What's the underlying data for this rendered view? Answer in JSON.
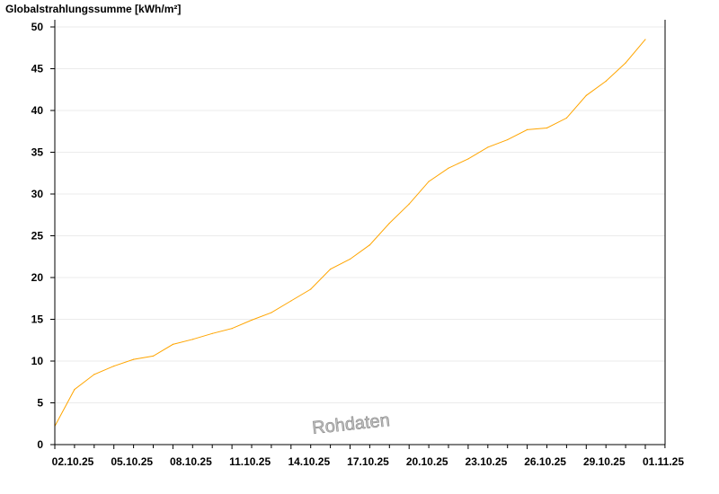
{
  "chart_data": {
    "type": "line",
    "title": "",
    "ylabel": "Globalstrahlungssumme [kWh/m²]",
    "xlabel": "",
    "watermark": "Rohdaten",
    "ylim": [
      0,
      50
    ],
    "yticks": [
      0,
      5,
      10,
      15,
      20,
      25,
      30,
      35,
      40,
      45,
      50
    ],
    "xlim": [
      "02.10.25",
      "03.11.25"
    ],
    "xtick_labels": [
      "02.10.25",
      "05.10.25",
      "08.10.25",
      "11.10.25",
      "14.10.25",
      "17.10.25",
      "20.10.25",
      "23.10.25",
      "26.10.25",
      "29.10.25",
      "01.11.25"
    ],
    "grid": true,
    "line_color": "#ffa500",
    "x": [
      "02.10.25",
      "03.10.25",
      "04.10.25",
      "05.10.25",
      "06.10.25",
      "07.10.25",
      "08.10.25",
      "09.10.25",
      "10.10.25",
      "11.10.25",
      "12.10.25",
      "13.10.25",
      "14.10.25",
      "15.10.25",
      "16.10.25",
      "17.10.25",
      "18.10.25",
      "19.10.25",
      "20.10.25",
      "21.10.25",
      "22.10.25",
      "23.10.25",
      "24.10.25",
      "25.10.25",
      "26.10.25",
      "27.10.25",
      "28.10.25",
      "29.10.25",
      "30.10.25",
      "31.10.25",
      "01.11.25"
    ],
    "values": [
      2.2,
      6.6,
      8.4,
      9.4,
      10.2,
      10.6,
      12.0,
      12.6,
      13.3,
      13.9,
      14.9,
      15.8,
      17.2,
      18.6,
      21.0,
      22.2,
      23.9,
      26.5,
      28.8,
      31.5,
      33.1,
      34.2,
      35.6,
      36.5,
      37.7,
      37.9,
      39.1,
      41.8,
      43.5,
      45.7,
      48.5
    ]
  }
}
